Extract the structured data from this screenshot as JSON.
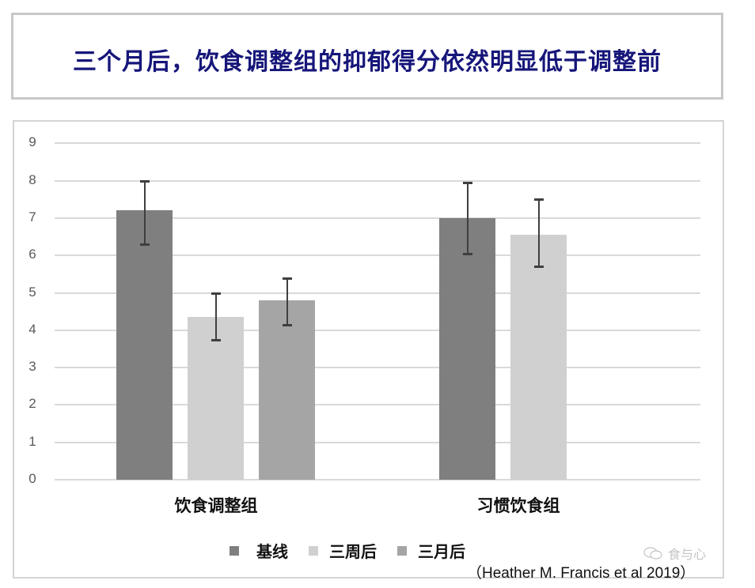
{
  "title": "三个月后，饮食调整组的抑郁得分依然明显低于调整前",
  "colors": {
    "title": "#16167a",
    "baseline": "#7f7f7f",
    "three_weeks": "#d0d0d0",
    "three_months": "#a5a5a5",
    "error_bar": "#3f3f3f",
    "grid": "#d9d9d9"
  },
  "chart_data": {
    "type": "bar",
    "title": "三个月后，饮食调整组的抑郁得分依然明显低于调整前",
    "xlabel": "",
    "ylabel": "",
    "ylim": [
      0,
      9
    ],
    "yticks": [
      "0",
      "1",
      "2",
      "3",
      "4",
      "5",
      "6",
      "7",
      "8",
      "9"
    ],
    "grid": true,
    "legend_position": "bottom",
    "categories": [
      "饮食调整组",
      "习惯饮食组"
    ],
    "series": [
      {
        "name": "基线",
        "values": [
          7.2,
          7.0
        ],
        "error_low": [
          6.3,
          6.05
        ],
        "error_high": [
          8.0,
          7.95
        ]
      },
      {
        "name": "三周后",
        "values": [
          4.35,
          6.55
        ],
        "error_low": [
          3.75,
          5.7
        ],
        "error_high": [
          5.0,
          7.5
        ]
      },
      {
        "name": "三月后",
        "values": [
          4.8,
          null
        ],
        "error_low": [
          4.15,
          null
        ],
        "error_high": [
          5.4,
          null
        ]
      }
    ]
  },
  "legend": [
    "基线",
    "三周后",
    "三月后"
  ],
  "watermark": "食与心",
  "citation": "（Heather M. Francis et al 2019）"
}
